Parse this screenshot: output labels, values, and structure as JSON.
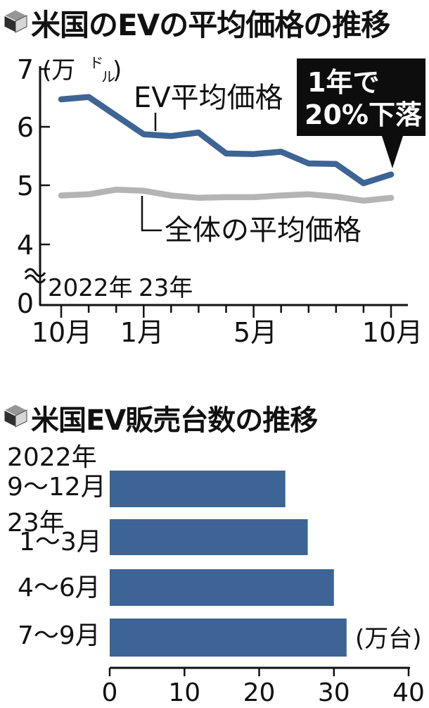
{
  "colors": {
    "accent_blue": "#3d6494",
    "line_gray": "#b4b4b4",
    "callout_bg": "#0d0d0d",
    "callout_text": "#ffffff",
    "axis_black": "#111111"
  },
  "price_chart": {
    "unit_display": {
      "open": "(万",
      "sup": "ド",
      "sub": "ル",
      "close": ")"
    },
    "years": [
      "2022年",
      "23年"
    ]
  },
  "sales_chart": {
    "unit": "(万台)"
  },
  "chart_data": [
    {
      "type": "line",
      "title": "米国のEVの平均価格の推移",
      "unit": "万ドル",
      "x": [
        "2022-10",
        "2022-11",
        "2022-12",
        "2023-01",
        "2023-02",
        "2023-03",
        "2023-04",
        "2023-05",
        "2023-06",
        "2023-07",
        "2023-08",
        "2023-09",
        "2023-10"
      ],
      "x_tick_labels": [
        {
          "index": 0,
          "label": "10月"
        },
        {
          "index": 3,
          "label": "1月"
        },
        {
          "index": 7,
          "label": "5月"
        },
        {
          "index": 12,
          "label": "10月"
        }
      ],
      "x_axis_years": [
        "2022年",
        "23年"
      ],
      "y_tick_labels": [
        "7",
        "6",
        "5",
        "4",
        "0"
      ],
      "ylim": [
        4,
        7
      ],
      "axis_break": true,
      "grid": false,
      "series": [
        {
          "name": "EV平均価格",
          "color": "#3d6494",
          "values": [
            6.48,
            6.52,
            6.2,
            5.88,
            5.85,
            5.91,
            5.55,
            5.54,
            5.58,
            5.38,
            5.37,
            5.04,
            5.19
          ]
        },
        {
          "name": "全体の平均価格",
          "color": "#b4b4b4",
          "values": [
            4.83,
            4.85,
            4.93,
            4.91,
            4.83,
            4.79,
            4.8,
            4.8,
            4.83,
            4.85,
            4.81,
            4.74,
            4.79
          ]
        }
      ],
      "annotation": {
        "line1": "1年で",
        "line2": "20%下落"
      }
    },
    {
      "type": "bar",
      "orientation": "horizontal",
      "title": "米国EV販売台数の推移",
      "unit": "(万台)",
      "categories": [
        [
          "2022年",
          "9〜12月"
        ],
        [
          "23年",
          "1〜3月"
        ],
        [
          "4〜6月"
        ],
        [
          "7〜9月"
        ]
      ],
      "values": [
        23.5,
        26.5,
        30.0,
        31.7
      ],
      "xlim": [
        0,
        40
      ],
      "x_tick_labels": [
        "0",
        "10",
        "20",
        "30",
        "40"
      ]
    }
  ]
}
